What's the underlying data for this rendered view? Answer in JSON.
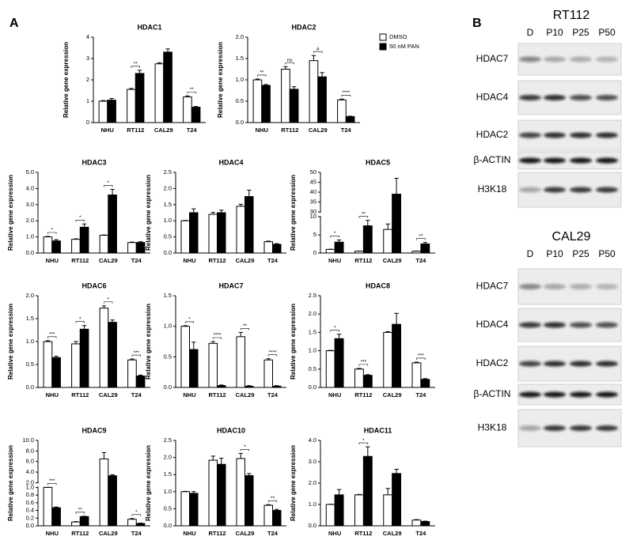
{
  "panel_labels": [
    "A",
    "B"
  ],
  "chart_data": [
    {
      "type": "bar",
      "title": "HDAC1",
      "ylabel": "Relative gene expression",
      "categories": [
        "NHU",
        "RT112",
        "CAL29",
        "T24"
      ],
      "ylim": [
        0,
        4
      ],
      "yticks": [
        0,
        1,
        2,
        3,
        4
      ],
      "series": [
        {
          "color": "#ffffff",
          "values": [
            1.0,
            1.55,
            2.75,
            1.2
          ],
          "errors": [
            0.03,
            0.05,
            0.05,
            0.05
          ]
        },
        {
          "color": "#000000",
          "values": [
            1.05,
            2.3,
            3.3,
            0.72
          ],
          "errors": [
            0.08,
            0.15,
            0.15,
            0.03
          ]
        }
      ],
      "significance": [
        null,
        "**",
        null,
        "**"
      ]
    },
    {
      "type": "bar",
      "title": "HDAC2",
      "ylabel": "Relative gene expression",
      "categories": [
        "NHU",
        "RT112",
        "CAL29",
        "T24"
      ],
      "ylim": [
        0,
        2
      ],
      "yticks": [
        {
          "value": 0,
          "label": "0.0"
        },
        0.5,
        {
          "value": 1,
          "label": "1.0"
        },
        1.5,
        {
          "value": 2,
          "label": "2.0"
        }
      ],
      "legend": true,
      "series": [
        {
          "name": "DMSO",
          "color": "#ffffff",
          "values": [
            1.0,
            1.25,
            1.45,
            0.53
          ],
          "errors": [
            0.02,
            0.06,
            0.12,
            0.02
          ]
        },
        {
          "name": "50 nM PAN",
          "color": "#000000",
          "values": [
            0.87,
            0.78,
            1.07,
            0.14
          ],
          "errors": [
            0.02,
            0.06,
            0.1,
            0.01
          ]
        }
      ],
      "significance": [
        "**",
        "ns",
        "#",
        "****"
      ]
    },
    {
      "type": "bar",
      "title": "HDAC3",
      "ylabel": "Relative gene expression",
      "categories": [
        "NHU",
        "RT112",
        "CAL29",
        "T24"
      ],
      "ylim": [
        0,
        5
      ],
      "yticks": [
        {
          "value": 0,
          "label": "0.0"
        },
        {
          "value": 1,
          "label": "1.0"
        },
        {
          "value": 2,
          "label": "2.0"
        },
        {
          "value": 3,
          "label": "3.0"
        },
        {
          "value": 4,
          "label": "4.0"
        },
        {
          "value": 5,
          "label": "5.0"
        }
      ],
      "series": [
        {
          "color": "#ffffff",
          "values": [
            1.0,
            0.85,
            1.1,
            0.65
          ],
          "errors": [
            0.03,
            0.03,
            0.02,
            0.03
          ]
        },
        {
          "color": "#000000",
          "values": [
            0.75,
            1.6,
            3.6,
            0.65
          ],
          "errors": [
            0.08,
            0.2,
            0.35,
            0.05
          ]
        }
      ],
      "significance": [
        "*",
        "*",
        "*",
        null
      ]
    },
    {
      "type": "bar",
      "title": "HDAC4",
      "ylabel": "Relative gene expression",
      "categories": [
        "NHU",
        "RT112",
        "CAL29",
        "T24"
      ],
      "ylim": [
        0,
        2.5
      ],
      "yticks": [
        {
          "value": 0,
          "label": "0.0"
        },
        0.5,
        {
          "value": 1,
          "label": "1.0"
        },
        1.5,
        {
          "value": 2,
          "label": "2.0"
        },
        2.5
      ],
      "series": [
        {
          "color": "#ffffff",
          "values": [
            1.0,
            1.2,
            1.45,
            0.35
          ],
          "errors": [
            0.01,
            0.06,
            0.06,
            0.02
          ]
        },
        {
          "color": "#000000",
          "values": [
            1.25,
            1.25,
            1.75,
            0.27
          ],
          "errors": [
            0.12,
            0.08,
            0.2,
            0.02
          ]
        }
      ],
      "significance": [
        null,
        null,
        null,
        null
      ]
    },
    {
      "type": "bar",
      "title": "HDAC5",
      "ylabel": "Relative gene expression",
      "categories": [
        "NHU",
        "RT112",
        "CAL29",
        "T24"
      ],
      "ylim": [
        0,
        50
      ],
      "ybreak": [
        10,
        30
      ],
      "yticks": [
        0,
        5,
        10,
        30,
        35,
        40,
        45,
        50
      ],
      "series": [
        {
          "color": "#ffffff",
          "values": [
            1.0,
            0.5,
            6.5,
            0.5
          ],
          "errors": [
            0.05,
            0.05,
            1.5,
            0.05
          ]
        },
        {
          "color": "#000000",
          "values": [
            3.0,
            7.5,
            39,
            2.5
          ],
          "errors": [
            0.6,
            1.5,
            8,
            0.4
          ]
        }
      ],
      "significance": [
        "*",
        "**",
        null,
        "**"
      ]
    },
    {
      "type": "bar",
      "title": "HDAC6",
      "ylabel": "Relative gene expression",
      "categories": [
        "NHU",
        "RT112",
        "CAL29",
        "T24"
      ],
      "ylim": [
        0,
        2
      ],
      "yticks": [
        {
          "value": 0,
          "label": "0.0"
        },
        0.5,
        {
          "value": 1,
          "label": "1.0"
        },
        1.5,
        {
          "value": 2,
          "label": "2.0"
        }
      ],
      "series": [
        {
          "color": "#ffffff",
          "values": [
            1.0,
            0.95,
            1.73,
            0.6
          ],
          "errors": [
            0.02,
            0.05,
            0.05,
            0.02
          ]
        },
        {
          "color": "#000000",
          "values": [
            0.65,
            1.27,
            1.42,
            0.25
          ],
          "errors": [
            0.03,
            0.08,
            0.05,
            0.02
          ]
        }
      ],
      "significance": [
        "***",
        "*",
        "*",
        "***"
      ]
    },
    {
      "type": "bar",
      "title": "HDAC7",
      "ylabel": "Relative gene expression",
      "categories": [
        "NHU",
        "RT112",
        "CAL29",
        "T24"
      ],
      "ylim": [
        0,
        1.5
      ],
      "yticks": [
        {
          "value": 0,
          "label": "0.0"
        },
        0.5,
        {
          "value": 1,
          "label": "1.0"
        },
        1.5
      ],
      "series": [
        {
          "color": "#ffffff",
          "values": [
            1.0,
            0.72,
            0.83,
            0.45
          ],
          "errors": [
            0.01,
            0.03,
            0.07,
            0.02
          ]
        },
        {
          "color": "#000000",
          "values": [
            0.62,
            0.03,
            0.02,
            0.02
          ],
          "errors": [
            0.12,
            0.01,
            0.01,
            0.01
          ]
        }
      ],
      "significance": [
        "*",
        "****",
        "**",
        "****"
      ]
    },
    {
      "type": "bar",
      "title": "HDAC8",
      "ylabel": "Relative gene expression",
      "categories": [
        "NHU",
        "RT112",
        "CAL29",
        "T24"
      ],
      "ylim": [
        0,
        2.5
      ],
      "yticks": [
        {
          "value": 0,
          "label": "0.0"
        },
        0.5,
        {
          "value": 1,
          "label": "1.0"
        },
        1.5,
        {
          "value": 2,
          "label": "2.0"
        },
        2.5
      ],
      "series": [
        {
          "color": "#ffffff",
          "values": [
            1.0,
            0.5,
            1.5,
            0.67
          ],
          "errors": [
            0.01,
            0.02,
            0.02,
            0.02
          ]
        },
        {
          "color": "#000000",
          "values": [
            1.33,
            0.33,
            1.72,
            0.22
          ],
          "errors": [
            0.12,
            0.02,
            0.3,
            0.02
          ]
        }
      ],
      "significance": [
        "*",
        "***",
        null,
        "***"
      ]
    },
    {
      "type": "bar",
      "title": "HDAC9",
      "ylabel": "Relative gene expression",
      "categories": [
        "NHU",
        "RT112",
        "CAL29",
        "T24"
      ],
      "ylim": [
        0,
        10
      ],
      "ybreak": [
        1,
        2
      ],
      "yticks": [
        {
          "value": 0,
          "label": "0.0"
        },
        0.2,
        0.4,
        0.6,
        0.8,
        {
          "value": 1,
          "label": "1.0"
        },
        {
          "value": 2,
          "label": "2.0"
        },
        {
          "value": 4,
          "label": "4.0"
        },
        {
          "value": 6,
          "label": "6.0"
        },
        {
          "value": 8,
          "label": "8.0"
        },
        {
          "value": 10,
          "label": "10.0"
        }
      ],
      "series": [
        {
          "color": "#ffffff",
          "values": [
            1.0,
            0.1,
            6.5,
            0.17
          ],
          "errors": [
            0.01,
            0.01,
            1.2,
            0.02
          ]
        },
        {
          "color": "#000000",
          "values": [
            0.47,
            0.24,
            3.3,
            0.06
          ],
          "errors": [
            0.02,
            0.01,
            0.2,
            0.01
          ]
        }
      ],
      "significance": [
        "***",
        "**",
        null,
        "*"
      ]
    },
    {
      "type": "bar",
      "title": "HDAC10",
      "ylabel": "Relative gene expression",
      "categories": [
        "NHU",
        "RT112",
        "CAL29",
        "T24"
      ],
      "ylim": [
        0,
        2.5
      ],
      "yticks": [
        {
          "value": 0,
          "label": "0.0"
        },
        0.5,
        {
          "value": 1,
          "label": "1.0"
        },
        1.5,
        {
          "value": 2,
          "label": "2.0"
        },
        2.5
      ],
      "series": [
        {
          "color": "#ffffff",
          "values": [
            1.0,
            1.92,
            1.97,
            0.6
          ],
          "errors": [
            0.01,
            0.12,
            0.15,
            0.02
          ]
        },
        {
          "color": "#000000",
          "values": [
            0.95,
            1.8,
            1.47,
            0.45
          ],
          "errors": [
            0.05,
            0.18,
            0.06,
            0.03
          ]
        }
      ],
      "significance": [
        null,
        null,
        "*",
        "**"
      ]
    },
    {
      "type": "bar",
      "title": "HDAC11",
      "ylabel": "Relative gene expression",
      "categories": [
        "NHU",
        "RT112",
        "CAL29",
        "T24"
      ],
      "ylim": [
        0,
        4
      ],
      "yticks": [
        {
          "value": 0,
          "label": "0.0"
        },
        {
          "value": 1,
          "label": "1.0"
        },
        {
          "value": 2,
          "label": "2.0"
        },
        {
          "value": 3,
          "label": "3.0"
        },
        {
          "value": 4,
          "label": "4.0"
        }
      ],
      "series": [
        {
          "color": "#ffffff",
          "values": [
            1.0,
            1.45,
            1.45,
            0.27
          ],
          "errors": [
            0.01,
            0.02,
            0.3,
            0.02
          ]
        },
        {
          "color": "#000000",
          "values": [
            1.45,
            3.25,
            2.45,
            0.2
          ],
          "errors": [
            0.25,
            0.45,
            0.2,
            0.02
          ]
        }
      ],
      "significance": [
        null,
        "*",
        null,
        null
      ]
    }
  ],
  "blots": [
    {
      "title": "RT112",
      "lanes": [
        "D",
        "P10",
        "P25",
        "P50"
      ],
      "rows": [
        "HDAC7",
        "HDAC4",
        "HDAC2",
        "β-ACTIN",
        "H3K18"
      ]
    },
    {
      "title": "CAL29",
      "lanes": [
        "D",
        "P10",
        "P25",
        "P50"
      ],
      "rows": [
        "HDAC7",
        "HDAC4",
        "HDAC2",
        "β-ACTIN",
        "H3K18"
      ]
    }
  ]
}
